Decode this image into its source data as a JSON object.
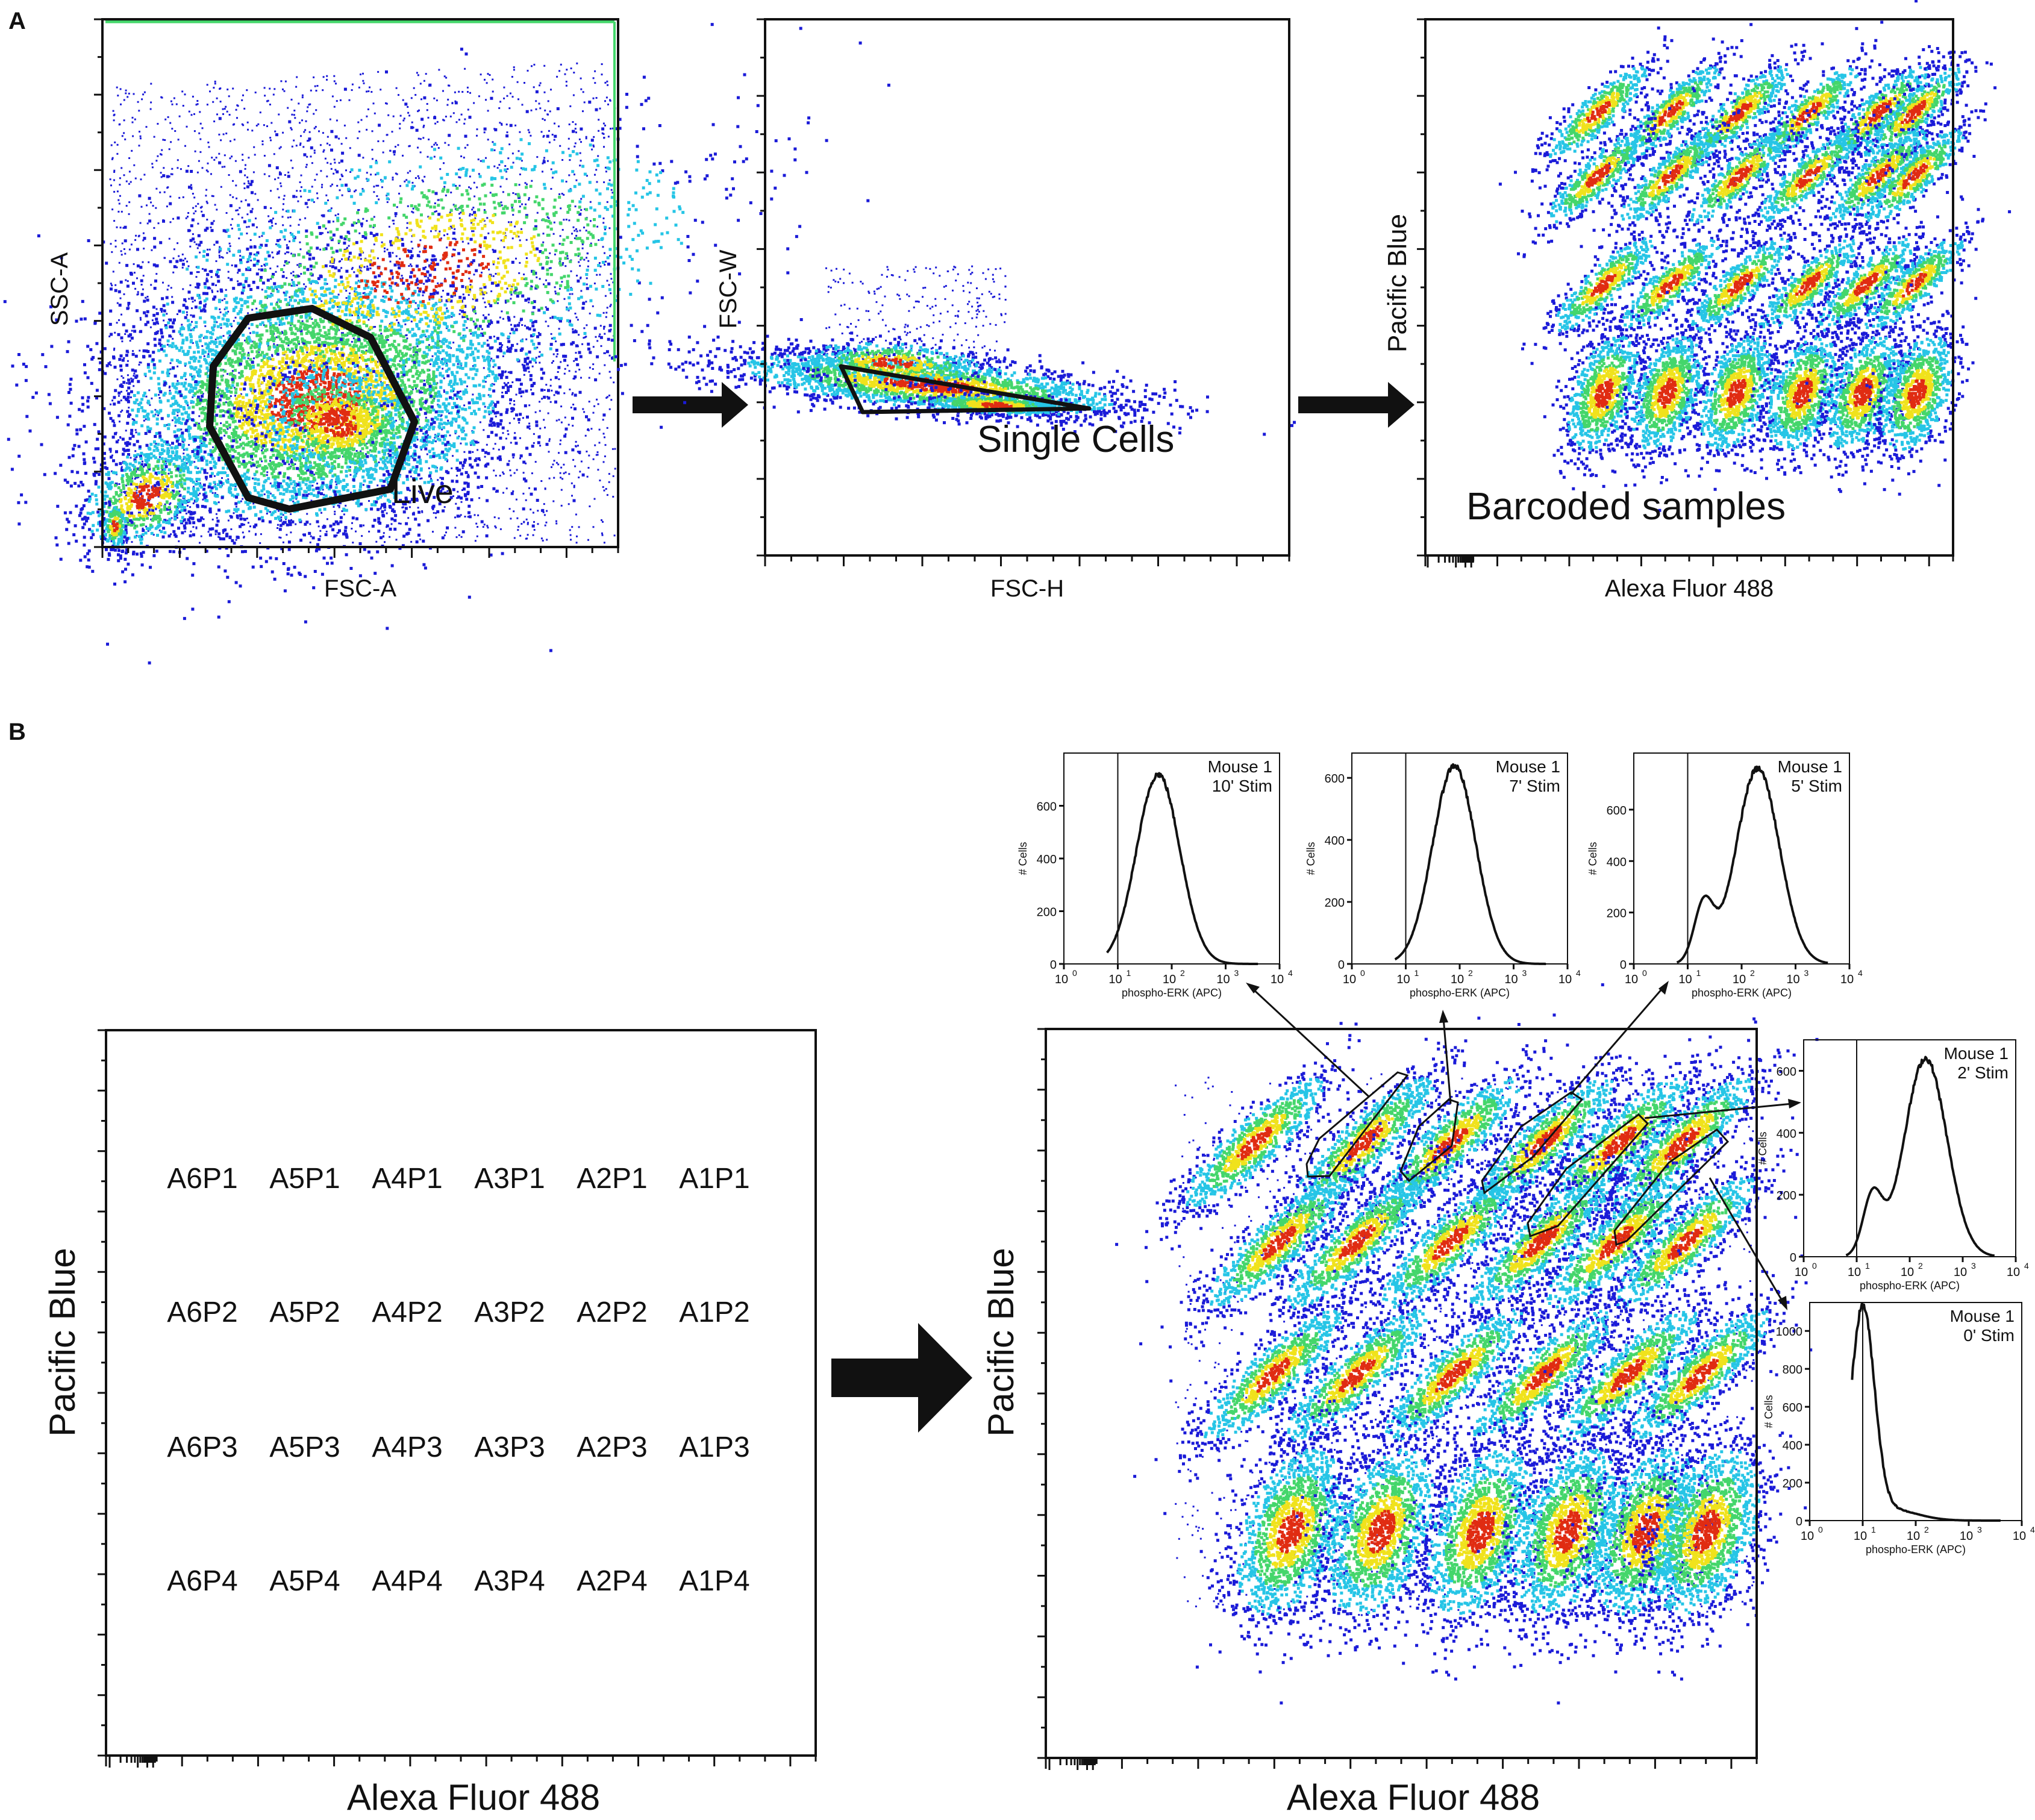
{
  "panels": {
    "a_label": "A",
    "b_label": "B"
  },
  "colors": {
    "density_low": "#1b1bd8",
    "density_mid1": "#26c5e6",
    "density_mid2": "#44d66b",
    "density_mid3": "#f0e21c",
    "density_high": "#e02c12",
    "ink": "#111111"
  },
  "plot_a1": {
    "xlabel": "FSC-A",
    "ylabel": "SSC-A",
    "gate_label": "Live"
  },
  "plot_a2": {
    "xlabel": "FSC-H",
    "ylabel": "FSC-W",
    "gate_label": "Single Cells"
  },
  "plot_a3": {
    "xlabel": "Alexa Fluor 488",
    "ylabel": "Pacific  Blue",
    "annotation": "Barcoded samples"
  },
  "plot_b1": {
    "xlabel": "Alexa Fluor 488",
    "ylabel": "Pacific  Blue",
    "sample_grid": [
      [
        "A6P1",
        "A5P1",
        "A4P1",
        "A3P1",
        "A2P1",
        "A1P1"
      ],
      [
        "A6P2",
        "A5P2",
        "A4P2",
        "A3P2",
        "A2P2",
        "A1P2"
      ],
      [
        "A6P3",
        "A5P3",
        "A4P3",
        "A3P3",
        "A2P3",
        "A1P3"
      ],
      [
        "A6P4",
        "A5P4",
        "A4P4",
        "A3P4",
        "A2P4",
        "A1P4"
      ]
    ]
  },
  "plot_b2": {
    "xlabel": "Alexa Fluor 488",
    "ylabel": "Pacific  Blue"
  },
  "histograms": [
    {
      "title_line1": "Mouse 1",
      "title_line2": "10' Stim",
      "ylabel": "# Cells",
      "xlabel": "phospho-ERK (APC)",
      "yticks": [
        "0",
        "200",
        "400",
        "600"
      ],
      "ymax": 800,
      "peak_log": 1.75,
      "peak_count": 720,
      "gate_log": 1.0
    },
    {
      "title_line1": "Mouse 1",
      "title_line2": "7' Stim",
      "ylabel": "# Cells",
      "xlabel": "phospho-ERK (APC)",
      "yticks": [
        "0",
        "200",
        "400",
        "600"
      ],
      "ymax": 680,
      "peak_log": 1.9,
      "peak_count": 640,
      "gate_log": 1.0
    },
    {
      "title_line1": "Mouse 1",
      "title_line2": "5' Stim",
      "ylabel": "# Cells",
      "xlabel": "phospho-ERK (APC)",
      "yticks": [
        "0",
        "200",
        "400",
        "600"
      ],
      "ymax": 820,
      "peak_log": 2.3,
      "peak_count": 760,
      "gate_log": 1.0
    },
    {
      "title_line1": "Mouse 1",
      "title_line2": "2' Stim",
      "ylabel": "# Cells",
      "xlabel": "phospho-ERK (APC)",
      "yticks": [
        "0",
        "200",
        "400",
        "600"
      ],
      "ymax": 700,
      "peak_log": 2.3,
      "peak_count": 640,
      "gate_log": 1.0
    },
    {
      "title_line1": "Mouse 1",
      "title_line2": "0' Stim",
      "ylabel": "# Cells",
      "xlabel": "phospho-ERK (APC)",
      "yticks": [
        "0",
        "200",
        "400",
        "600",
        "800",
        "1000"
      ],
      "ymax": 1150,
      "peak_log": 1.0,
      "peak_count": 1100,
      "gate_log": 1.0
    }
  ],
  "hist_xticks": [
    "10",
    "10",
    "10",
    "10",
    "10"
  ],
  "hist_xtick_exps": [
    "0",
    "1",
    "2",
    "3",
    "4"
  ]
}
